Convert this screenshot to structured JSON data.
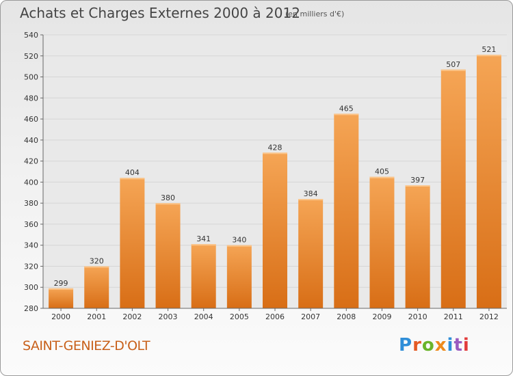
{
  "chart_data": {
    "type": "bar",
    "title": "Achats et Charges Externes 2000 à 2012",
    "subtitle": "(en milliers d'€)",
    "categories": [
      "2000",
      "2001",
      "2002",
      "2003",
      "2004",
      "2005",
      "2006",
      "2007",
      "2008",
      "2009",
      "2010",
      "2011",
      "2012"
    ],
    "values": [
      299,
      320,
      404,
      380,
      341,
      340,
      428,
      384,
      465,
      405,
      397,
      507,
      521
    ],
    "ylim": [
      280,
      540
    ],
    "yticks": [
      280,
      300,
      320,
      340,
      360,
      380,
      400,
      420,
      440,
      460,
      480,
      500,
      520,
      540
    ],
    "grid": true,
    "bar_color": "#e8842a"
  },
  "footer": {
    "place": "SAINT-GENIEZ-D'OLT",
    "logo": "Proxiti"
  },
  "colors": {
    "bar_top": "#f5a555",
    "bar_bottom": "#d86e16",
    "place_text": "#c8601a",
    "logo_letters": [
      "#2f8ed8",
      "#e45a24",
      "#6ab42a",
      "#ee8a1c",
      "#2f8ed8",
      "#9a5bbf",
      "#e23c3c"
    ]
  }
}
